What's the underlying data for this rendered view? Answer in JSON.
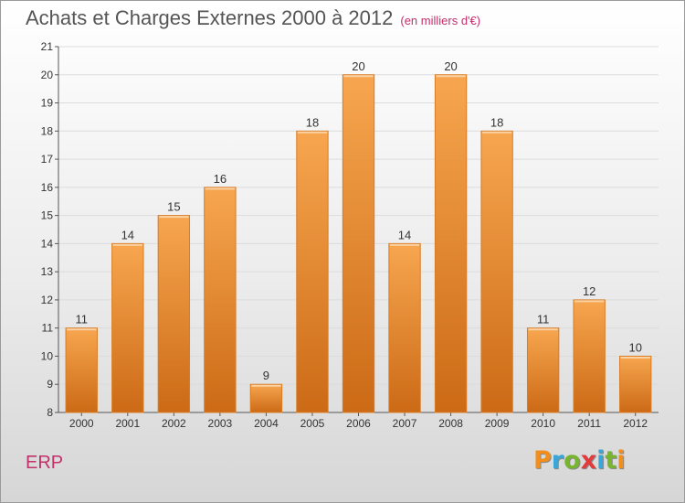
{
  "header": {
    "title": "Achats et Charges Externes 2000 à 2012",
    "subtitle": "(en milliers d'€)"
  },
  "footer": {
    "entity": "ERP",
    "logo_letters": [
      "P",
      "r",
      "o",
      "x",
      "i",
      "t",
      "i"
    ],
    "logo_colors": [
      "#f28f1c",
      "#3aa6d8",
      "#77b52f",
      "#e23b3b",
      "#3aa6d8",
      "#77b52f",
      "#f28f1c"
    ]
  },
  "colors": {
    "bar_light": "#f7a64f",
    "bar_dark": "#cc6a16",
    "bar_edge": "#d97c24",
    "gridline": "#dcdcdc",
    "axis": "#555555"
  },
  "chart_data": {
    "type": "bar",
    "title": "Achats et Charges Externes 2000 à 2012",
    "subtitle": "(en milliers d'€)",
    "xlabel": "",
    "ylabel": "",
    "categories": [
      "2000",
      "2001",
      "2002",
      "2003",
      "2004",
      "2005",
      "2006",
      "2007",
      "2008",
      "2009",
      "2010",
      "2011",
      "2012"
    ],
    "values": [
      11,
      14,
      15,
      16,
      9,
      18,
      20,
      14,
      20,
      18,
      11,
      12,
      10
    ],
    "data_labels": [
      "11",
      "14",
      "15",
      "16",
      "9",
      "18",
      "20",
      "14",
      "20",
      "18",
      "11",
      "12",
      "10"
    ],
    "ylim": [
      8,
      21
    ],
    "yticks": [
      8,
      9,
      10,
      11,
      12,
      13,
      14,
      15,
      16,
      17,
      18,
      19,
      20,
      21
    ],
    "grid": true,
    "legend": "none"
  }
}
